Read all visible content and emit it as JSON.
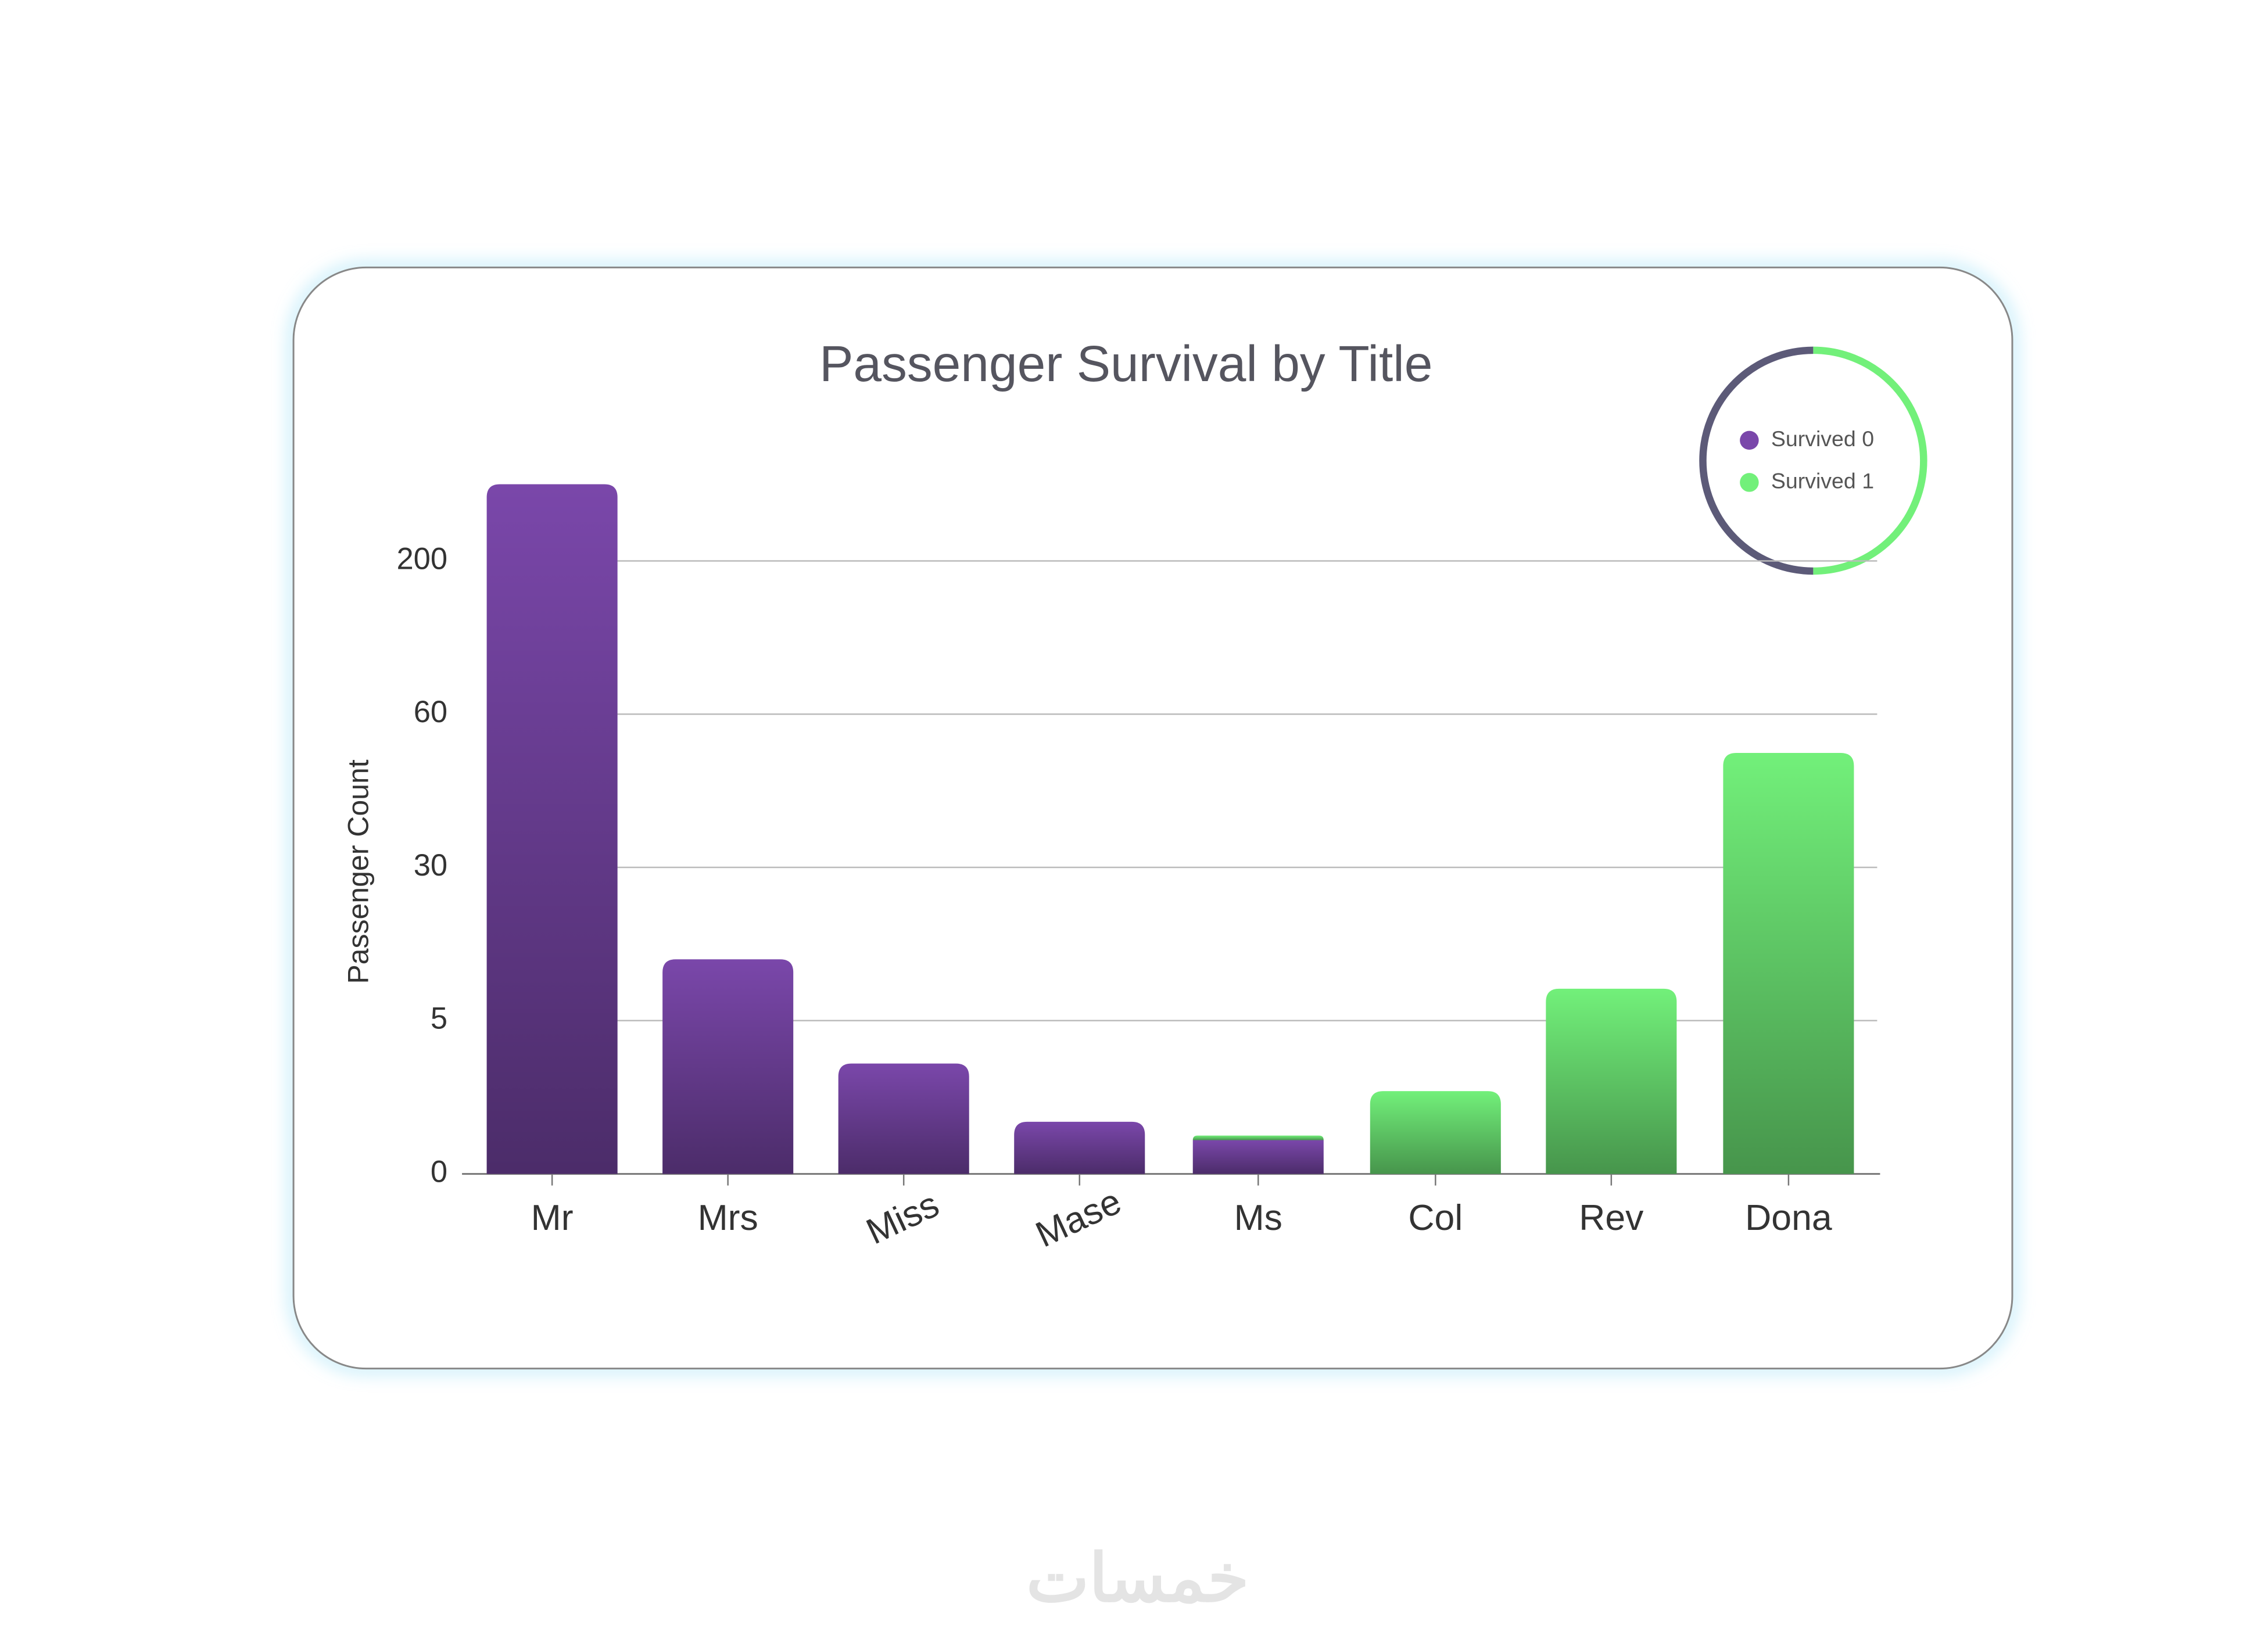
{
  "chart_data": {
    "type": "bar",
    "stacked": true,
    "title": "Passenger Survival by Title",
    "y_label": "Passenger Count",
    "categories": [
      "Mr",
      "Mrs",
      "Miss",
      "Mase",
      "Ms",
      "Col",
      "Rev",
      "Dona"
    ],
    "series": [
      {
        "name": "Survived 0",
        "color": "#7a47aa",
        "values": [
          270,
          15,
          3.6,
          1.7,
          1.1,
          null,
          null,
          null
        ]
      },
      {
        "name": "Survived 1",
        "color": "#72f07a",
        "values": [
          null,
          null,
          null,
          null,
          0.15,
          2.7,
          10.2,
          52.4
        ]
      }
    ],
    "ylim": [
      0,
      280
    ],
    "yticks": [
      0,
      5,
      30,
      60,
      200
    ],
    "grid": true
  },
  "watermark": "خمسات"
}
